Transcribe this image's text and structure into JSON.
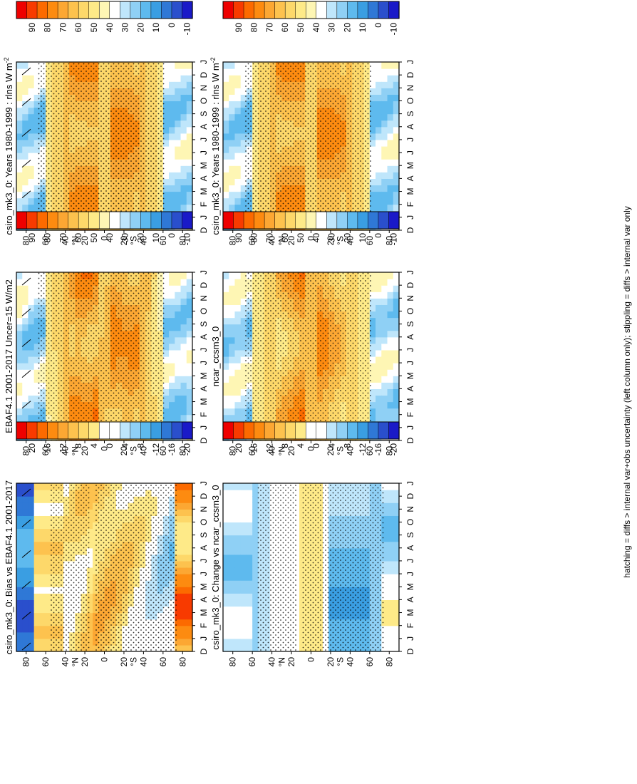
{
  "figure": {
    "footnote": "hatching = diffs > internal var+obs uncertainty (left column only); stippling = diffs > internal var only",
    "orientation": "rotated-90-clockwise",
    "colors": {
      "abs": [
        "#ee0000",
        "#f83a00",
        "#fc6a00",
        "#fd8b10",
        "#fca733",
        "#fdc24e",
        "#fdd86a",
        "#feea88",
        "#fef6b4",
        "#ffffff",
        "#bfe6fb",
        "#8fd0f5",
        "#5ebaee",
        "#3a9ee2",
        "#2f78d6",
        "#2a4fcc",
        "#1a1ac8"
      ],
      "diff": [
        "#ee0000",
        "#f83a00",
        "#fc6a00",
        "#fd8b10",
        "#fca733",
        "#fdc24e",
        "#fdd86a",
        "#feea88",
        "#ffffff",
        "#ffffff",
        "#bfe6fb",
        "#8fd0f5",
        "#5ebaee",
        "#3a9ee2",
        "#2f78d6",
        "#2a4fcc",
        "#1a1ac8"
      ]
    }
  },
  "chart_data": [
    {
      "id": "left-top",
      "type": "heatmap",
      "title": "csiro_mk3_0: Years 1980-1999 : rlns W m",
      "title_sup": "-2",
      "months": [
        "D",
        "J",
        "F",
        "M",
        "A",
        "M",
        "J",
        "J",
        "A",
        "S",
        "O",
        "N",
        "D",
        "J"
      ],
      "lat_labels": [
        "80",
        "60",
        "40",
        "20",
        "0",
        "20",
        "40",
        "60",
        "80"
      ],
      "lat_values": [
        80,
        60,
        40,
        20,
        0,
        -20,
        -40,
        -60,
        -80
      ],
      "lat_names": {
        "north": "N",
        "south": "S"
      },
      "colorbar_ticks": [
        "90",
        "80",
        "70",
        "60",
        "50",
        "40",
        "30",
        "20",
        "10",
        "0",
        "-10"
      ],
      "colorbar_range": [
        -15,
        100
      ],
      "field": "abs",
      "hatching": true,
      "stippling": true
    },
    {
      "id": "right-top",
      "type": "heatmap",
      "title": "csiro_mk3_0: Years 1980-1999 : rlns W m",
      "title_sup": "-2",
      "months": [
        "D",
        "J",
        "F",
        "M",
        "A",
        "M",
        "J",
        "J",
        "A",
        "S",
        "O",
        "N",
        "D",
        "J"
      ],
      "lat_labels": [
        "80",
        "60",
        "40",
        "20",
        "0",
        "20",
        "40",
        "60",
        "80"
      ],
      "lat_values": [
        80,
        60,
        40,
        20,
        0,
        -20,
        -40,
        -60,
        -80
      ],
      "lat_names": {
        "north": "N",
        "south": "S"
      },
      "colorbar_ticks": [
        "90",
        "80",
        "70",
        "60",
        "50",
        "40",
        "30",
        "20",
        "10",
        "0",
        "-10"
      ],
      "colorbar_range": [
        -15,
        100
      ],
      "field": "abs",
      "hatching": false,
      "stippling": true
    },
    {
      "id": "left-mid",
      "type": "heatmap",
      "title": "EBAF4.1 2001-2017 Uncer=15 W/m2",
      "title_sup": "",
      "months": [
        "D",
        "J",
        "F",
        "M",
        "A",
        "M",
        "J",
        "J",
        "A",
        "S",
        "O",
        "N",
        "D",
        "J"
      ],
      "lat_labels": [
        "80",
        "60",
        "40",
        "20",
        "0",
        "20",
        "40",
        "60",
        "80"
      ],
      "lat_values": [
        80,
        60,
        40,
        20,
        0,
        -20,
        -40,
        -60,
        -80
      ],
      "lat_names": {
        "north": "N",
        "south": "S"
      },
      "colorbar_ticks": [
        "90",
        "80",
        "70",
        "60",
        "50",
        "40",
        "30",
        "20",
        "10",
        "0",
        "-10"
      ],
      "colorbar_range": [
        -15,
        100
      ],
      "field": "abs_obs",
      "hatching": true,
      "stippling": true
    },
    {
      "id": "right-mid",
      "type": "heatmap",
      "title": "ncar_ccsm3_0",
      "title_sup": "",
      "months": [
        "D",
        "J",
        "F",
        "M",
        "A",
        "M",
        "J",
        "J",
        "A",
        "S",
        "O",
        "N",
        "D",
        "J"
      ],
      "lat_labels": [
        "80",
        "60",
        "40",
        "20",
        "0",
        "20",
        "40",
        "60",
        "80"
      ],
      "lat_values": [
        80,
        60,
        40,
        20,
        0,
        -20,
        -40,
        -60,
        -80
      ],
      "lat_names": {
        "north": "N",
        "south": "S"
      },
      "colorbar_ticks": [
        "90",
        "80",
        "70",
        "60",
        "50",
        "40",
        "30",
        "20",
        "10",
        "0",
        "-10"
      ],
      "colorbar_range": [
        -15,
        100
      ],
      "field": "abs_ncar",
      "hatching": false,
      "stippling": true
    },
    {
      "id": "left-bot",
      "type": "heatmap",
      "title": "csiro_mk3_0: Bias vs EBAF4.1 2001-2017",
      "title_sup": "",
      "months": [
        "D",
        "J",
        "F",
        "M",
        "A",
        "M",
        "J",
        "J",
        "A",
        "S",
        "O",
        "N",
        "D",
        "J"
      ],
      "lat_labels": [
        "80",
        "60",
        "40",
        "20",
        "0",
        "20",
        "40",
        "60",
        "80"
      ],
      "lat_values": [
        80,
        60,
        40,
        20,
        0,
        -20,
        -40,
        -60,
        -80
      ],
      "lat_names": {
        "north": "N",
        "south": "S"
      },
      "colorbar_ticks": [
        "20",
        "16",
        "12",
        "8",
        "4",
        "0",
        "-4",
        "-8",
        "-12",
        "-16",
        "-20"
      ],
      "colorbar_range": [
        -22,
        22
      ],
      "field": "bias",
      "hatching": true,
      "stippling": true
    },
    {
      "id": "right-bot",
      "type": "heatmap",
      "title": "csiro_mk3_0: Change vs ncar_ccsm3_0",
      "title_sup": "",
      "months": [
        "D",
        "J",
        "F",
        "M",
        "A",
        "M",
        "J",
        "J",
        "A",
        "S",
        "O",
        "N",
        "D",
        "J"
      ],
      "lat_labels": [
        "80",
        "60",
        "40",
        "20",
        "0",
        "20",
        "40",
        "60",
        "80"
      ],
      "lat_values": [
        80,
        60,
        40,
        20,
        0,
        -20,
        -40,
        -60,
        -80
      ],
      "lat_names": {
        "north": "N",
        "south": "S"
      },
      "colorbar_ticks": [
        "20",
        "16",
        "12",
        "8",
        "4",
        "0",
        "-4",
        "-8",
        "-12",
        "-16",
        "-20"
      ],
      "colorbar_range": [
        -22,
        22
      ],
      "field": "change",
      "hatching": false,
      "stippling": true
    }
  ]
}
